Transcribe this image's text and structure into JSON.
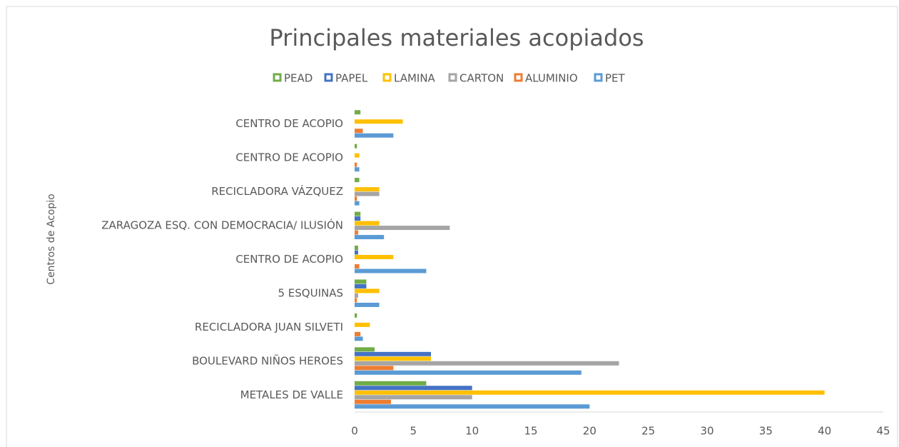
{
  "chart_data": {
    "type": "barh",
    "title": "Principales materiales acopiados",
    "y_label": "Centros de Acopio",
    "categories": [
      "METALES DE VALLE",
      "BOULEVARD NIÑOS HEROES",
      "RECICLADORA JUAN SILVETI",
      "5 ESQUINAS",
      "CENTRO DE ACOPIO",
      "ZARAGOZA ESQ. CON DEMOCRACIA/ ILUSIÓN",
      "RECICLADORA VÁZQUEZ",
      "CENTRO DE ACOPIO",
      "CENTRO DE ACOPIO"
    ],
    "series": [
      {
        "name": "PEAD",
        "color": "#70ad47",
        "values": [
          6.1,
          1.7,
          0.2,
          1,
          0.3,
          0.5,
          0.4,
          0.2,
          0.5
        ]
      },
      {
        "name": "PAPEL",
        "color": "#4472c4",
        "values": [
          10,
          6.5,
          0,
          1,
          0.3,
          0.5,
          0,
          0,
          0
        ]
      },
      {
        "name": "LAMINA",
        "color": "#ffc000",
        "values": [
          40,
          6.5,
          1.3,
          2.1,
          3.3,
          2.1,
          2.1,
          0.4,
          4.1
        ]
      },
      {
        "name": "CARTON",
        "color": "#a5a5a5",
        "values": [
          10,
          22.5,
          0,
          0.3,
          0,
          8.1,
          2.1,
          0,
          0
        ]
      },
      {
        "name": "ALUMINIO",
        "color": "#ed7d31",
        "values": [
          3.1,
          3.3,
          0.5,
          0.2,
          0.4,
          0.3,
          0.2,
          0.2,
          0.7
        ]
      },
      {
        "name": "PET",
        "color": "#5b9bd5",
        "values": [
          20,
          19.3,
          0.7,
          2.1,
          6.1,
          2.5,
          0.4,
          0.4,
          3.3
        ]
      }
    ],
    "xlim": [
      0,
      45
    ],
    "xticks": [
      0,
      5,
      10,
      15,
      20,
      25,
      30,
      35,
      40,
      45
    ],
    "legend": "top"
  }
}
